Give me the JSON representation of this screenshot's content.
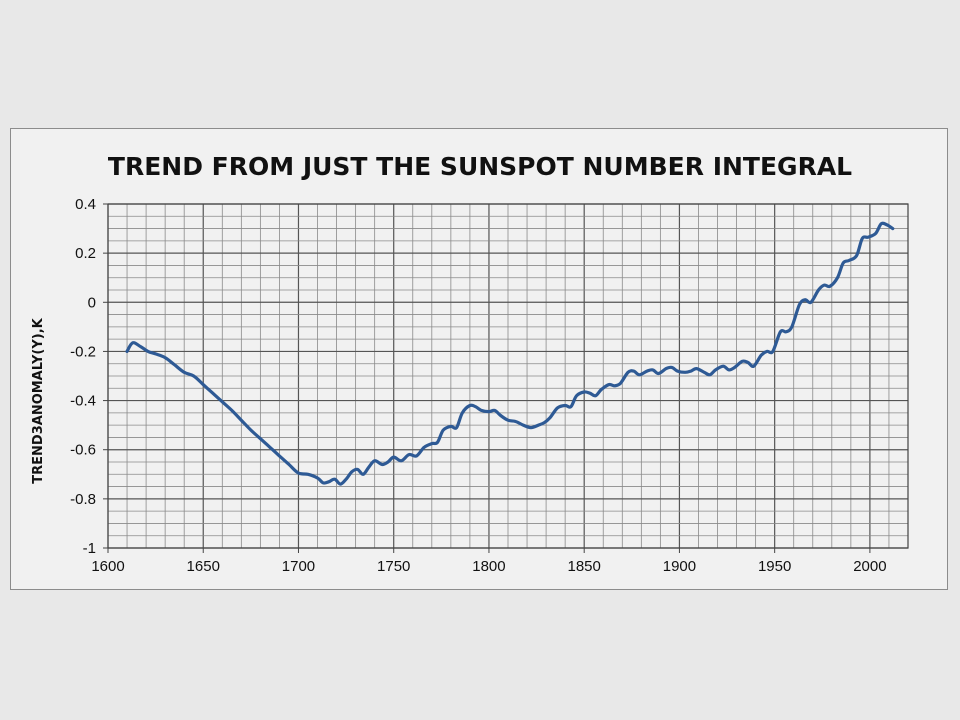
{
  "chart_data": {
    "type": "line",
    "title": "TREND FROM JUST THE SUNSPOT NUMBER INTEGRAL",
    "xlabel": "",
    "ylabel": "TREND3ANOMALY(Y),K",
    "xlim": [
      1600,
      2020
    ],
    "ylim": [
      -1,
      0.4
    ],
    "x_ticks": [
      1600,
      1650,
      1700,
      1750,
      1800,
      1850,
      1900,
      1950,
      2000
    ],
    "y_ticks": [
      0.4,
      0.2,
      0,
      -0.2,
      -0.4,
      -0.6,
      -0.8,
      -1
    ],
    "y_tick_labels": [
      "0.4",
      "0.2",
      "0",
      "-0.2",
      "-0.4",
      "-0.6",
      "-0.8",
      "-1"
    ],
    "grid": true,
    "legend": "none",
    "series": [
      {
        "color": "#2e5a95",
        "x": [
          1610,
          1613,
          1617,
          1621,
          1625,
          1630,
          1635,
          1640,
          1645,
          1650,
          1655,
          1660,
          1665,
          1670,
          1675,
          1680,
          1685,
          1690,
          1695,
          1700,
          1705,
          1710,
          1713,
          1716,
          1719,
          1722,
          1725,
          1728,
          1731,
          1734,
          1737,
          1740,
          1744,
          1747,
          1750,
          1754,
          1758,
          1762,
          1766,
          1770,
          1773,
          1776,
          1780,
          1783,
          1786,
          1790,
          1793,
          1796,
          1800,
          1803,
          1806,
          1810,
          1814,
          1818,
          1822,
          1826,
          1829,
          1832,
          1836,
          1840,
          1843,
          1846,
          1850,
          1853,
          1856,
          1859,
          1863,
          1866,
          1869,
          1873,
          1876,
          1879,
          1883,
          1886,
          1889,
          1893,
          1896,
          1899,
          1903,
          1906,
          1909,
          1913,
          1916,
          1919,
          1923,
          1926,
          1929,
          1933,
          1936,
          1939,
          1943,
          1946,
          1949,
          1953,
          1956,
          1959,
          1963,
          1966,
          1969,
          1973,
          1976,
          1979,
          1983,
          1986,
          1989,
          1993,
          1996,
          1999,
          2003,
          2006,
          2009,
          2012
        ],
        "values": [
          -0.2,
          -0.165,
          -0.18,
          -0.2,
          -0.21,
          -0.225,
          -0.255,
          -0.285,
          -0.3,
          -0.335,
          -0.37,
          -0.405,
          -0.44,
          -0.48,
          -0.52,
          -0.555,
          -0.59,
          -0.625,
          -0.66,
          -0.695,
          -0.7,
          -0.715,
          -0.735,
          -0.73,
          -0.72,
          -0.74,
          -0.72,
          -0.69,
          -0.68,
          -0.7,
          -0.67,
          -0.645,
          -0.66,
          -0.65,
          -0.63,
          -0.645,
          -0.62,
          -0.625,
          -0.59,
          -0.575,
          -0.57,
          -0.52,
          -0.505,
          -0.51,
          -0.45,
          -0.42,
          -0.425,
          -0.44,
          -0.445,
          -0.44,
          -0.46,
          -0.48,
          -0.485,
          -0.5,
          -0.51,
          -0.5,
          -0.49,
          -0.47,
          -0.43,
          -0.42,
          -0.425,
          -0.38,
          -0.365,
          -0.37,
          -0.38,
          -0.355,
          -0.335,
          -0.34,
          -0.33,
          -0.285,
          -0.28,
          -0.295,
          -0.28,
          -0.275,
          -0.29,
          -0.27,
          -0.265,
          -0.28,
          -0.285,
          -0.28,
          -0.27,
          -0.285,
          -0.295,
          -0.275,
          -0.26,
          -0.275,
          -0.265,
          -0.24,
          -0.245,
          -0.26,
          -0.215,
          -0.2,
          -0.2,
          -0.12,
          -0.12,
          -0.1,
          -0.01,
          0.01,
          0,
          0.05,
          0.07,
          0.065,
          0.1,
          0.16,
          0.17,
          0.19,
          0.26,
          0.265,
          0.28,
          0.32,
          0.315,
          0.3
        ]
      }
    ]
  }
}
